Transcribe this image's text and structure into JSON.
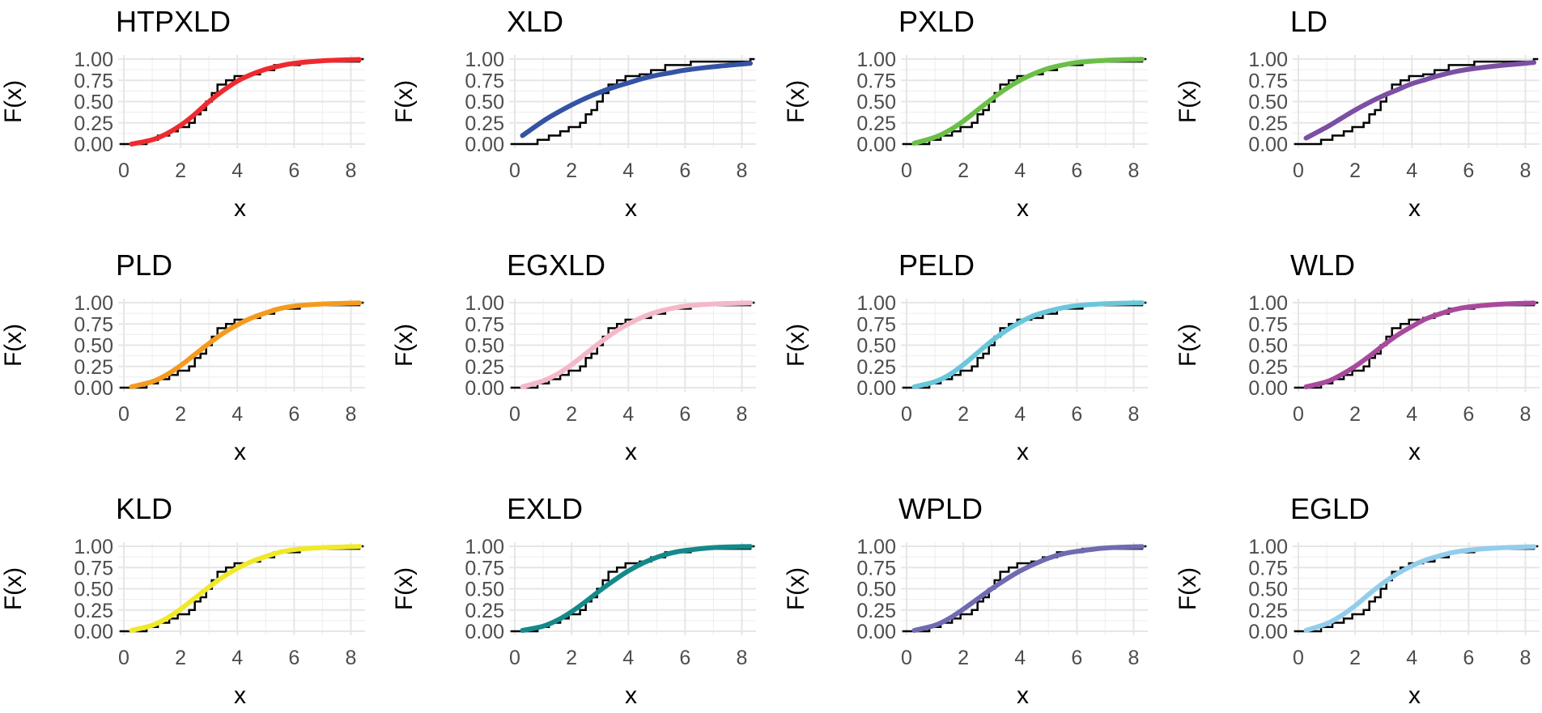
{
  "chart_data": {
    "type": "line",
    "layout": "3x4 facets",
    "xlabel": "x",
    "ylabel": "F(x)",
    "xlim": [
      0,
      8.5
    ],
    "ylim": [
      0,
      1
    ],
    "x_ticks": [
      "0",
      "2",
      "4",
      "6",
      "8"
    ],
    "x_tick_values": [
      0,
      2,
      4,
      6,
      8
    ],
    "y_ticks": [
      "0.00",
      "0.25",
      "0.50",
      "0.75",
      "1.00"
    ],
    "y_tick_values": [
      0,
      0.25,
      0.5,
      0.75,
      1
    ],
    "ecdf_color": "#000000",
    "empirical_cdf": [
      {
        "x": 0.27,
        "y": 0.0
      },
      {
        "x": 0.8,
        "y": 0.05
      },
      {
        "x": 1.2,
        "y": 0.1
      },
      {
        "x": 1.6,
        "y": 0.15
      },
      {
        "x": 1.9,
        "y": 0.2
      },
      {
        "x": 2.3,
        "y": 0.25
      },
      {
        "x": 2.5,
        "y": 0.35
      },
      {
        "x": 2.7,
        "y": 0.4
      },
      {
        "x": 2.9,
        "y": 0.5
      },
      {
        "x": 3.1,
        "y": 0.6
      },
      {
        "x": 3.3,
        "y": 0.7
      },
      {
        "x": 3.6,
        "y": 0.75
      },
      {
        "x": 3.9,
        "y": 0.8
      },
      {
        "x": 4.4,
        "y": 0.82
      },
      {
        "x": 4.8,
        "y": 0.87
      },
      {
        "x": 5.3,
        "y": 0.93
      },
      {
        "x": 6.2,
        "y": 0.97
      },
      {
        "x": 8.3,
        "y": 1.0
      }
    ],
    "x_range": [
      0.27,
      8.3
    ],
    "panels": [
      {
        "title": "HTPXLD",
        "color": "#ee2a2f",
        "x": [
          0.27,
          1,
          1.5,
          2,
          2.5,
          3,
          3.5,
          4,
          4.5,
          5,
          5.5,
          6,
          7,
          8.3
        ],
        "y": [
          0.0,
          0.05,
          0.12,
          0.22,
          0.35,
          0.5,
          0.63,
          0.74,
          0.82,
          0.88,
          0.92,
          0.95,
          0.98,
          0.995
        ]
      },
      {
        "title": "XLD",
        "color": "#3453a4",
        "x": [
          0.27,
          1,
          1.5,
          2,
          2.5,
          3,
          3.5,
          4,
          4.5,
          5,
          5.5,
          6,
          7,
          8.3
        ],
        "y": [
          0.1,
          0.27,
          0.37,
          0.46,
          0.54,
          0.61,
          0.67,
          0.72,
          0.77,
          0.81,
          0.84,
          0.87,
          0.91,
          0.95
        ]
      },
      {
        "title": "PXLD",
        "color": "#6bbf47",
        "x": [
          0.27,
          1,
          1.5,
          2,
          2.5,
          3,
          3.5,
          4,
          4.5,
          5,
          5.5,
          6,
          7,
          8.3
        ],
        "y": [
          0.01,
          0.08,
          0.16,
          0.27,
          0.4,
          0.53,
          0.65,
          0.75,
          0.83,
          0.89,
          0.93,
          0.96,
          0.985,
          0.998
        ]
      },
      {
        "title": "LD",
        "color": "#7b4fa3",
        "x": [
          0.27,
          1,
          1.5,
          2,
          2.5,
          3,
          3.5,
          4,
          4.5,
          5,
          5.5,
          6,
          7,
          8.3
        ],
        "y": [
          0.07,
          0.2,
          0.3,
          0.4,
          0.49,
          0.57,
          0.64,
          0.71,
          0.76,
          0.81,
          0.85,
          0.88,
          0.92,
          0.96
        ]
      },
      {
        "title": "PLD",
        "color": "#f49b1f",
        "x": [
          0.27,
          1,
          1.5,
          2,
          2.5,
          3,
          3.5,
          4,
          4.5,
          5,
          5.5,
          6,
          7,
          8.3
        ],
        "y": [
          0.01,
          0.07,
          0.15,
          0.26,
          0.39,
          0.52,
          0.64,
          0.74,
          0.82,
          0.88,
          0.93,
          0.96,
          0.985,
          0.998
        ]
      },
      {
        "title": "EGXLD",
        "color": "#f4b8c8",
        "x": [
          0.27,
          1,
          1.5,
          2,
          2.5,
          3,
          3.5,
          4,
          4.5,
          5,
          5.5,
          6,
          7,
          8.3
        ],
        "y": [
          0.01,
          0.08,
          0.16,
          0.27,
          0.4,
          0.53,
          0.65,
          0.75,
          0.83,
          0.89,
          0.93,
          0.96,
          0.985,
          0.998
        ]
      },
      {
        "title": "PELD",
        "color": "#6ac7db",
        "x": [
          0.27,
          1,
          1.5,
          2,
          2.5,
          3,
          3.5,
          4,
          4.5,
          5,
          5.5,
          6,
          7,
          8.3
        ],
        "y": [
          0.01,
          0.07,
          0.15,
          0.27,
          0.41,
          0.55,
          0.67,
          0.77,
          0.85,
          0.9,
          0.94,
          0.965,
          0.988,
          0.999
        ]
      },
      {
        "title": "WLD",
        "color": "#a84a9c",
        "x": [
          0.27,
          1,
          1.5,
          2,
          2.5,
          3,
          3.5,
          4,
          4.5,
          5,
          5.5,
          6,
          7,
          8.3
        ],
        "y": [
          0.01,
          0.07,
          0.15,
          0.25,
          0.37,
          0.5,
          0.62,
          0.72,
          0.81,
          0.87,
          0.92,
          0.95,
          0.98,
          0.997
        ]
      },
      {
        "title": "KLD",
        "color": "#f0e92a",
        "x": [
          0.27,
          1,
          1.5,
          2,
          2.5,
          3,
          3.5,
          4,
          4.5,
          5,
          5.5,
          6,
          7,
          8.3
        ],
        "y": [
          0.01,
          0.07,
          0.15,
          0.26,
          0.39,
          0.52,
          0.64,
          0.74,
          0.82,
          0.88,
          0.93,
          0.96,
          0.985,
          0.998
        ]
      },
      {
        "title": "EXLD",
        "color": "#14898a",
        "x": [
          0.27,
          1,
          1.5,
          2,
          2.5,
          3,
          3.5,
          4,
          4.5,
          5,
          5.5,
          6,
          7,
          8.3
        ],
        "y": [
          0.01,
          0.06,
          0.13,
          0.23,
          0.35,
          0.48,
          0.6,
          0.71,
          0.8,
          0.87,
          0.92,
          0.95,
          0.985,
          0.998
        ]
      },
      {
        "title": "WPLD",
        "color": "#6f6bb0",
        "x": [
          0.27,
          1,
          1.5,
          2,
          2.5,
          3,
          3.5,
          4,
          4.5,
          5,
          5.5,
          6,
          7,
          8.3
        ],
        "y": [
          0.01,
          0.07,
          0.15,
          0.26,
          0.38,
          0.5,
          0.61,
          0.71,
          0.79,
          0.86,
          0.91,
          0.94,
          0.98,
          0.997
        ]
      },
      {
        "title": "EGLD",
        "color": "#93cdec",
        "x": [
          0.27,
          1,
          1.5,
          2,
          2.5,
          3,
          3.5,
          4,
          4.5,
          5,
          5.5,
          6,
          7,
          8.3
        ],
        "y": [
          0.01,
          0.09,
          0.18,
          0.3,
          0.44,
          0.57,
          0.68,
          0.77,
          0.84,
          0.89,
          0.93,
          0.955,
          0.98,
          0.995
        ]
      }
    ]
  }
}
